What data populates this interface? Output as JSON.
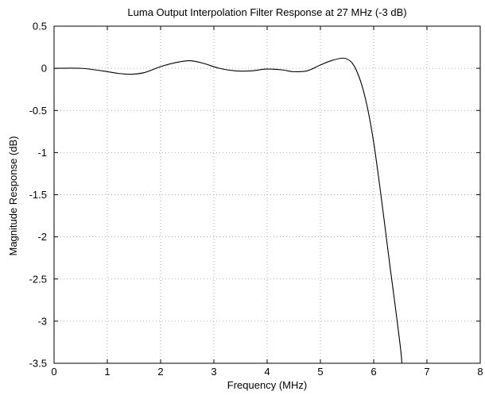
{
  "chart_data": {
    "type": "line",
    "title": "Luma Output Interpolation Filter Response at 27 MHz (-3 dB)",
    "xlabel": "Frequency (MHz)",
    "ylabel": "Magnitude Response (dB)",
    "xlim": [
      0,
      8
    ],
    "ylim": [
      -3.5,
      0.5
    ],
    "xticks": [
      0,
      1,
      2,
      3,
      4,
      5,
      6,
      7,
      8
    ],
    "yticks": [
      0.5,
      0,
      -0.5,
      -1,
      -1.5,
      -2,
      -2.5,
      -3,
      -3.5
    ],
    "xtick_labels": [
      "0",
      "1",
      "2",
      "3",
      "4",
      "5",
      "6",
      "7",
      "8"
    ],
    "ytick_labels": [
      "0.5",
      "0",
      "-0.5",
      "-1",
      "-1.5",
      "-2",
      "-2.5",
      "-3",
      "-3.5"
    ],
    "grid": true,
    "series": [
      {
        "color": "#000000",
        "x": [
          0,
          0.5,
          0.9,
          1.2,
          1.45,
          1.7,
          2.0,
          2.3,
          2.55,
          2.8,
          3.1,
          3.4,
          3.7,
          3.95,
          4.1,
          4.3,
          4.5,
          4.75,
          5.0,
          5.2,
          5.4,
          5.5,
          5.6,
          5.7,
          5.8,
          5.9,
          6.0,
          6.1,
          6.2,
          6.3,
          6.4,
          6.5,
          6.53
        ],
        "y": [
          0,
          0,
          -0.03,
          -0.06,
          -0.07,
          -0.05,
          0.02,
          0.07,
          0.09,
          0.06,
          0.0,
          -0.03,
          -0.03,
          -0.01,
          -0.01,
          -0.02,
          -0.04,
          -0.03,
          0.04,
          0.09,
          0.12,
          0.11,
          0.06,
          -0.06,
          -0.25,
          -0.52,
          -0.88,
          -1.33,
          -1.82,
          -2.32,
          -2.8,
          -3.3,
          -3.5
        ]
      }
    ]
  }
}
